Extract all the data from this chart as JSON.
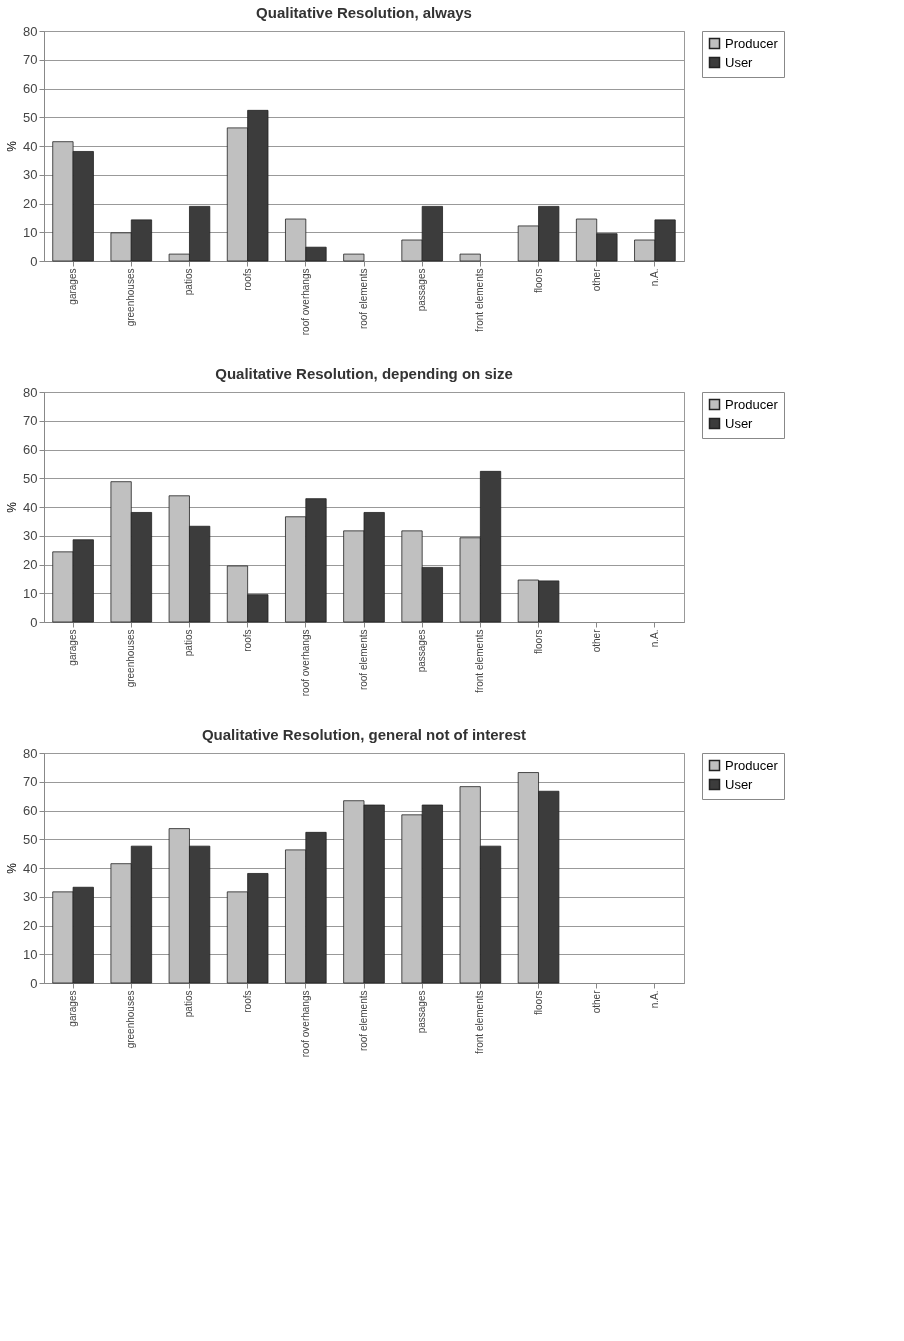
{
  "chart_data": [
    {
      "type": "bar",
      "title": "Qualitative Resolution, always",
      "ylabel": "%",
      "categories": [
        "garages",
        "greenhouses",
        "patios",
        "roofs",
        "roof overhangs",
        "roof elements",
        "passages",
        "front elements",
        "floors",
        "other",
        "n.A."
      ],
      "series": [
        {
          "name": "Producer",
          "color": "#c0c0c0",
          "values": [
            41.5,
            9.8,
            2.4,
            46.3,
            14.6,
            2.4,
            7.3,
            2.4,
            12.2,
            14.6,
            7.3
          ]
        },
        {
          "name": "User",
          "color": "#3c3c3c",
          "values": [
            38.1,
            14.3,
            19.0,
            52.4,
            4.8,
            null,
            19.0,
            null,
            19.0,
            9.5,
            14.3
          ]
        }
      ],
      "ylim": [
        0,
        80
      ],
      "yticks": [
        0,
        10,
        20,
        30,
        40,
        50,
        60,
        70,
        80
      ],
      "grid": "y",
      "legend": "right"
    },
    {
      "type": "bar",
      "title": "Qualitative Resolution, depending on size",
      "ylabel": "%",
      "categories": [
        "garages",
        "greenhouses",
        "patios",
        "roofs",
        "roof overhangs",
        "roof elements",
        "passages",
        "front elements",
        "floors",
        "other",
        "n.A."
      ],
      "series": [
        {
          "name": "Producer",
          "color": "#c0c0c0",
          "values": [
            24.4,
            48.8,
            43.9,
            19.5,
            36.6,
            31.7,
            31.7,
            29.3,
            14.6,
            null,
            null
          ]
        },
        {
          "name": "User",
          "color": "#3c3c3c",
          "values": [
            28.6,
            38.1,
            33.3,
            9.5,
            42.9,
            38.1,
            19.0,
            52.4,
            14.3,
            null,
            null
          ]
        }
      ],
      "ylim": [
        0,
        80
      ],
      "yticks": [
        0,
        10,
        20,
        30,
        40,
        50,
        60,
        70,
        80
      ],
      "grid": "y",
      "legend": "right"
    },
    {
      "type": "bar",
      "title": "Qualitative Resolution, general not of interest",
      "ylabel": "%",
      "categories": [
        "garages",
        "greenhouses",
        "patios",
        "roofs",
        "roof overhangs",
        "roof elements",
        "passages",
        "front elements",
        "floors",
        "other",
        "n.A."
      ],
      "series": [
        {
          "name": "Producer",
          "color": "#c0c0c0",
          "values": [
            31.7,
            41.5,
            53.7,
            31.7,
            46.3,
            63.4,
            58.5,
            68.3,
            73.2,
            null,
            null
          ]
        },
        {
          "name": "User",
          "color": "#3c3c3c",
          "values": [
            33.3,
            47.6,
            47.6,
            38.1,
            52.4,
            61.9,
            61.9,
            47.6,
            66.7,
            null,
            null
          ]
        }
      ],
      "ylim": [
        0,
        80
      ],
      "yticks": [
        0,
        10,
        20,
        30,
        40,
        50,
        60,
        70,
        80
      ],
      "grid": "y",
      "legend": "right"
    }
  ]
}
